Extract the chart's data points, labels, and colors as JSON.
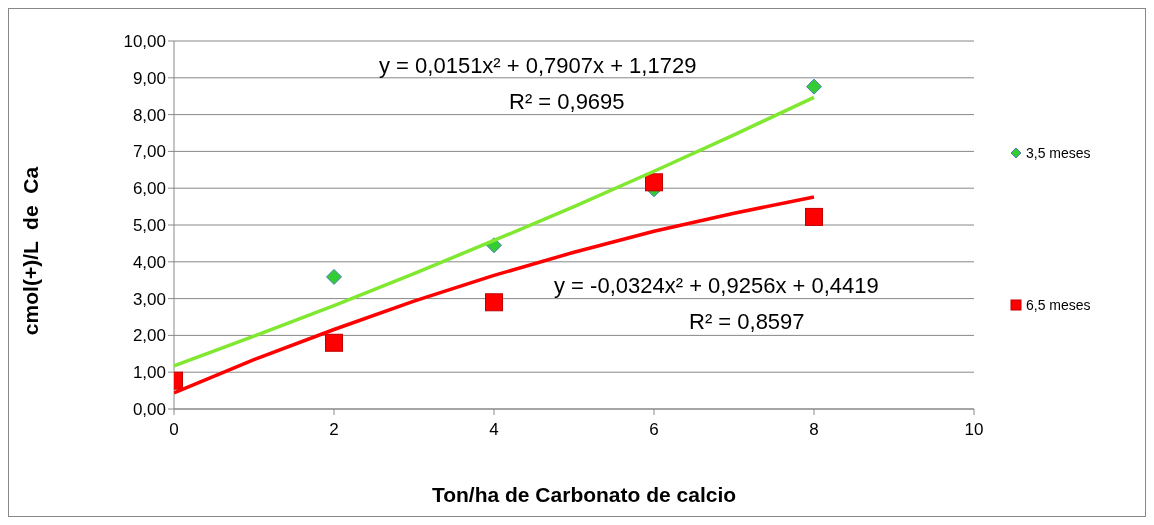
{
  "chart_data": {
    "type": "scatter",
    "xlabel": "Ton/ha de Carbonato de calcio",
    "ylabel": "cmol(+)/L  de  Ca",
    "x": [
      0,
      2,
      4,
      6,
      8
    ],
    "series": [
      {
        "name": "3,5 meses",
        "type": "scatter",
        "marker": "diamond",
        "color": "#33cc33",
        "values": [
          null,
          3.59,
          4.45,
          5.97,
          8.76
        ]
      },
      {
        "name": "6,5 meses",
        "type": "scatter",
        "marker": "square",
        "color": "#ff0000",
        "values": [
          0.77,
          1.8,
          2.9,
          6.16,
          5.22
        ]
      },
      {
        "type": "line",
        "marker": "none",
        "color": "#80e830",
        "x": [
          0,
          1,
          2,
          3,
          4,
          5,
          6,
          7,
          8
        ],
        "values": [
          1.17,
          1.98,
          2.81,
          3.68,
          4.58,
          5.5,
          6.46,
          7.45,
          8.47
        ]
      },
      {
        "type": "line",
        "marker": "none",
        "color": "#ff0000",
        "x": [
          0,
          1,
          2,
          3,
          4,
          5,
          6,
          7,
          8
        ],
        "values": [
          0.44,
          1.34,
          2.16,
          2.93,
          3.63,
          4.26,
          4.83,
          5.32,
          5.76
        ]
      }
    ],
    "annotations": [
      "y = 0,0151x² + 0,7907x + 1,1729",
      "R² = 0,9695",
      "y = -0,0324x² + 0,9256x + 0,4419",
      "R² = 0,8597"
    ],
    "xlim": [
      0,
      10
    ],
    "xticks": [
      0,
      2,
      4,
      6,
      8,
      10
    ],
    "ylim": [
      0,
      10
    ],
    "yticks": [
      {
        "value": 0,
        "label": "0,00"
      },
      {
        "value": 1,
        "label": "1,00"
      },
      {
        "value": 2,
        "label": "2,00"
      },
      {
        "value": 3,
        "label": "3,00"
      },
      {
        "value": 4,
        "label": "4,00"
      },
      {
        "value": 5,
        "label": "5,00"
      },
      {
        "value": 6,
        "label": "6,00"
      },
      {
        "value": 7,
        "label": "7,00"
      },
      {
        "value": 8,
        "label": "8,00"
      },
      {
        "value": 9,
        "label": "9,00"
      },
      {
        "value": 10,
        "label": "10,00"
      }
    ],
    "grid": "y",
    "legend": "right"
  }
}
